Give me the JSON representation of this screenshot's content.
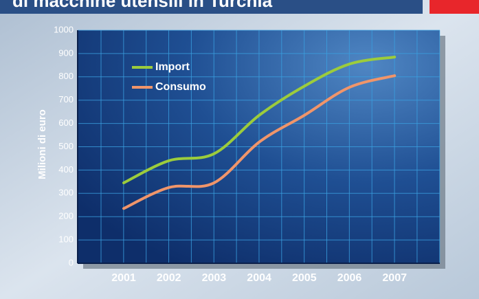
{
  "chart_data": {
    "type": "line",
    "title": "di macchine utensili in Turchia",
    "y_label": "Milioni di euro",
    "categories": [
      "2001",
      "2002",
      "2003",
      "2004",
      "2005",
      "2006",
      "2007"
    ],
    "series": [
      {
        "name": "Import",
        "color": "#9ccc3c",
        "values": [
          345,
          440,
          470,
          635,
          760,
          855,
          885
        ]
      },
      {
        "name": "Consumo",
        "color": "#f0956a",
        "values": [
          235,
          325,
          345,
          520,
          635,
          755,
          805
        ]
      }
    ],
    "ylim": [
      0,
      1000
    ],
    "yticks": [
      0,
      100,
      200,
      300,
      400,
      500,
      600,
      700,
      800,
      900,
      1000
    ],
    "grid": true,
    "legend": "upper left"
  }
}
